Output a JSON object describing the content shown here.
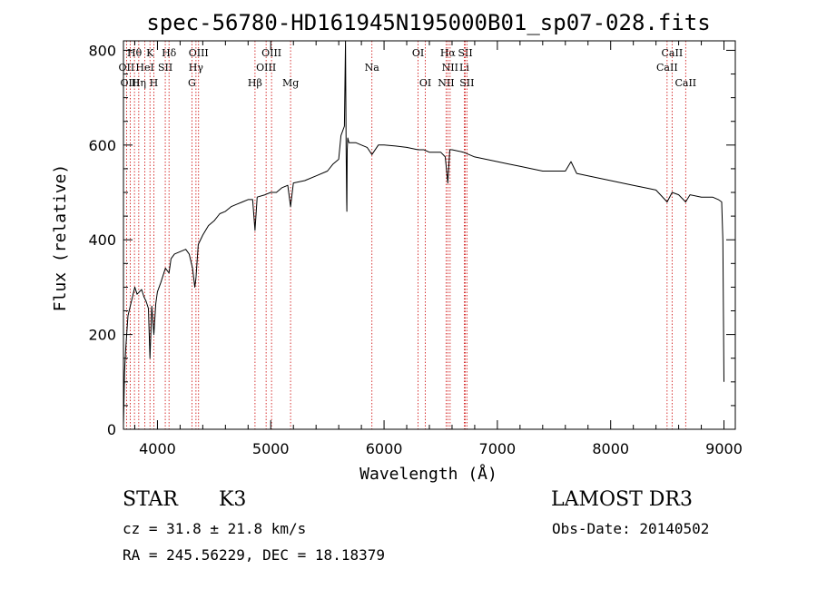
{
  "chart_data": {
    "type": "line",
    "title": "spec-56780-HD161945N195000B01_sp07-028.fits",
    "xlabel": "Wavelength (Å)",
    "ylabel": "Flux (relative)",
    "xlim": [
      3700,
      9100
    ],
    "ylim": [
      0,
      820
    ],
    "xticks": [
      4000,
      5000,
      6000,
      7000,
      8000,
      9000
    ],
    "yticks": [
      0,
      200,
      400,
      600,
      800
    ],
    "series": [
      {
        "name": "spectrum",
        "x": [
          3700,
          3710,
          3720,
          3740,
          3760,
          3780,
          3800,
          3820,
          3840,
          3860,
          3880,
          3900,
          3920,
          3934,
          3950,
          3968,
          3985,
          4000,
          4030,
          4070,
          4102,
          4120,
          4150,
          4200,
          4250,
          4280,
          4310,
          4330,
          4340,
          4360,
          4400,
          4450,
          4500,
          4550,
          4600,
          4650,
          4700,
          4750,
          4800,
          4840,
          4861,
          4880,
          4950,
          5000,
          5050,
          5100,
          5150,
          5175,
          5200,
          5300,
          5400,
          5500,
          5550,
          5600,
          5620,
          5650,
          5660,
          5665,
          5670,
          5672,
          5675,
          5680,
          5690,
          5700,
          5750,
          5800,
          5850,
          5893,
          5950,
          6000,
          6100,
          6200,
          6300,
          6350,
          6400,
          6500,
          6540,
          6563,
          6580,
          6600,
          6700,
          6800,
          6900,
          7000,
          7100,
          7200,
          7300,
          7400,
          7500,
          7600,
          7650,
          7700,
          7800,
          7900,
          8000,
          8100,
          8200,
          8300,
          8400,
          8498,
          8542,
          8600,
          8662,
          8700,
          8800,
          8900,
          8950,
          8980,
          8990,
          9000
        ],
        "values": [
          10,
          120,
          170,
          240,
          260,
          280,
          300,
          285,
          290,
          295,
          280,
          270,
          255,
          150,
          260,
          200,
          265,
          290,
          310,
          340,
          330,
          360,
          370,
          375,
          380,
          370,
          340,
          300,
          320,
          390,
          410,
          430,
          440,
          455,
          460,
          470,
          475,
          480,
          485,
          485,
          420,
          490,
          495,
          500,
          500,
          510,
          515,
          470,
          520,
          525,
          535,
          545,
          560,
          570,
          620,
          640,
          820,
          590,
          480,
          460,
          590,
          615,
          605,
          605,
          605,
          600,
          595,
          580,
          600,
          600,
          598,
          595,
          590,
          590,
          585,
          585,
          575,
          520,
          590,
          590,
          585,
          575,
          570,
          565,
          560,
          555,
          550,
          545,
          545,
          545,
          565,
          540,
          535,
          530,
          525,
          520,
          515,
          510,
          505,
          480,
          500,
          495,
          480,
          495,
          490,
          490,
          485,
          480,
          400,
          100
        ]
      }
    ],
    "line_labels": [
      {
        "label": "Hθ",
        "x": 3797,
        "row": 1
      },
      {
        "label": "OII",
        "x": 3727,
        "row": 2
      },
      {
        "label": "OIII",
        "x": 3760,
        "row": 3
      },
      {
        "label": "K",
        "x": 3934,
        "row": 1
      },
      {
        "label": "HeI",
        "x": 3889,
        "row": 2
      },
      {
        "label": "Hη",
        "x": 3835,
        "row": 3
      },
      {
        "label": "SII",
        "x": 4069,
        "row": 2
      },
      {
        "label": "H",
        "x": 3968,
        "row": 3
      },
      {
        "label": "Hδ",
        "x": 4102,
        "row": 1
      },
      {
        "label": "OIII",
        "x": 4363,
        "row": 1
      },
      {
        "label": "Hγ",
        "x": 4340,
        "row": 2
      },
      {
        "label": "G",
        "x": 4304,
        "row": 3
      },
      {
        "label": "OIII",
        "x": 5007,
        "row": 1
      },
      {
        "label": "OIII",
        "x": 4959,
        "row": 2
      },
      {
        "label": "Hβ",
        "x": 4861,
        "row": 3
      },
      {
        "label": "Mg",
        "x": 5175,
        "row": 3
      },
      {
        "label": "Na",
        "x": 5893,
        "row": 2
      },
      {
        "label": "OI",
        "x": 6300,
        "row": 1
      },
      {
        "label": "OI",
        "x": 6364,
        "row": 3
      },
      {
        "label": "Hα",
        "x": 6563,
        "row": 1
      },
      {
        "label": "SII",
        "x": 6717,
        "row": 1
      },
      {
        "label": "NII",
        "x": 6583,
        "row": 2
      },
      {
        "label": "Li",
        "x": 6708,
        "row": 2
      },
      {
        "label": "NII",
        "x": 6548,
        "row": 3
      },
      {
        "label": "SII",
        "x": 6731,
        "row": 3
      },
      {
        "label": "CaII",
        "x": 8542,
        "row": 1
      },
      {
        "label": "CaII",
        "x": 8498,
        "row": 2
      },
      {
        "label": "CaII",
        "x": 8662,
        "row": 3
      }
    ]
  },
  "footer": {
    "object_class": "STAR",
    "subclass": "K3",
    "survey": "LAMOST DR3",
    "redshift": "cz = 31.8 ± 21.8 km/s",
    "obs_date": "Obs-Date: 20140502",
    "coordinates": "RA = 245.56229, DEC =  18.18379"
  },
  "colors": {
    "line_marker": "#cc0000",
    "spectrum": "#000000"
  }
}
